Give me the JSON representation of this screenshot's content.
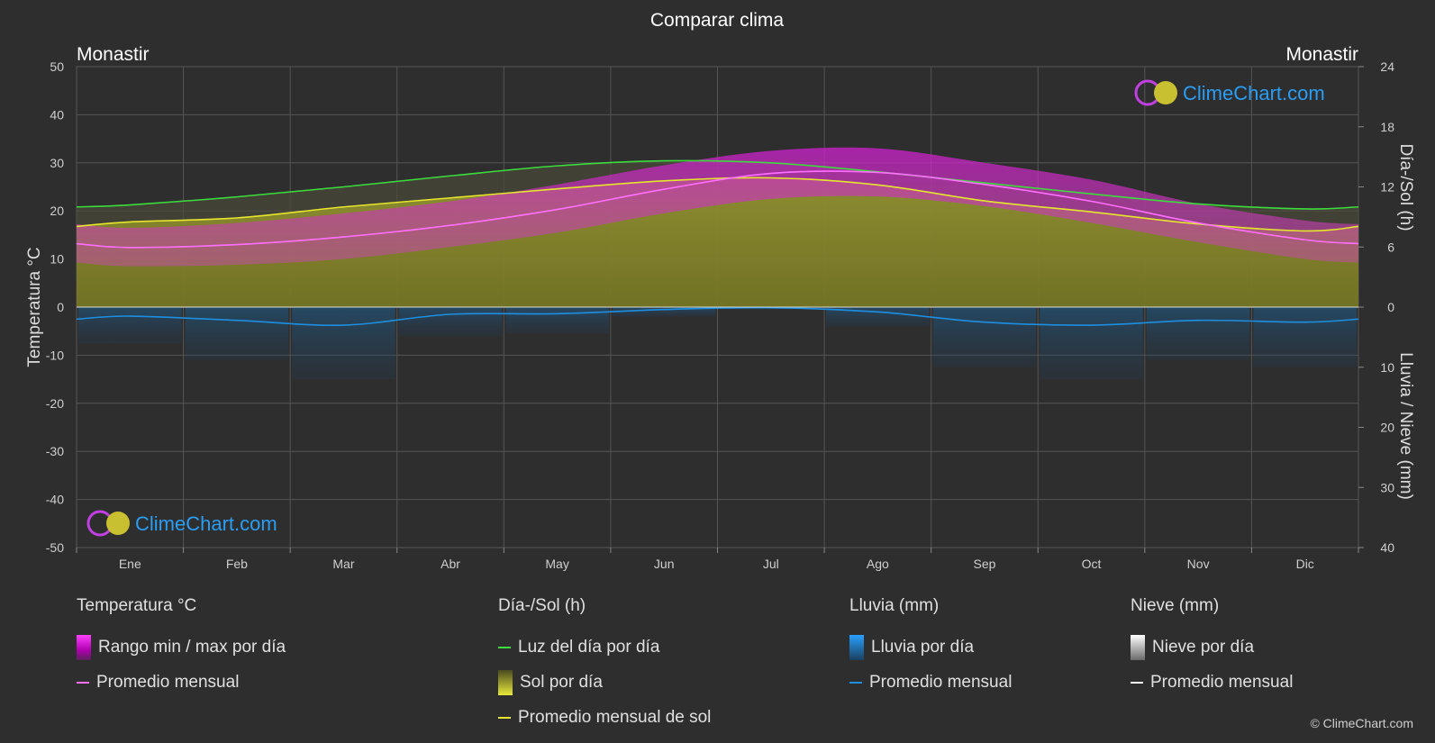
{
  "chart_data": {
    "type": "area",
    "title": "Comparar clima",
    "location_left": "Monastir",
    "location_right": "Monastir",
    "y_left_label": "Temperatura °C",
    "y_right_top_label": "Día-/Sol (h)",
    "y_right_bottom_label": "Lluvia / Nieve (mm)",
    "y_left_ticks": [
      "50",
      "40",
      "30",
      "20",
      "10",
      "0",
      "-10",
      "-20",
      "-30",
      "-40",
      "-50"
    ],
    "y_right_top_ticks": [
      "24",
      "18",
      "12",
      "6",
      "0"
    ],
    "y_right_bottom_ticks": [
      "10",
      "20",
      "30",
      "40"
    ],
    "ylim_temperature": [
      -50,
      50
    ],
    "ylim_hours": [
      0,
      24
    ],
    "ylim_precip_mm": [
      0,
      40
    ],
    "grid": true,
    "months": [
      "Ene",
      "Feb",
      "Mar",
      "Abr",
      "May",
      "Jun",
      "Jul",
      "Ago",
      "Sep",
      "Oct",
      "Nov",
      "Dic"
    ],
    "series": [
      {
        "name": "Luz del día por día",
        "unit": "h",
        "color": "#3ddc3d",
        "values": [
          10.2,
          11.0,
          12.0,
          13.1,
          14.1,
          14.6,
          14.4,
          13.5,
          12.4,
          11.3,
          10.3,
          9.8
        ]
      },
      {
        "name": "Promedio mensual de sol",
        "unit": "h",
        "color": "#e6e62e",
        "values": [
          8.5,
          8.9,
          10.0,
          10.9,
          11.8,
          12.6,
          12.9,
          12.2,
          10.6,
          9.5,
          8.3,
          7.6
        ]
      },
      {
        "name": "Temperatura promedio mensual",
        "unit": "°C",
        "color": "#ff70ff",
        "values": [
          12.4,
          13.0,
          14.6,
          17.0,
          20.3,
          24.5,
          27.8,
          28.0,
          25.5,
          22.0,
          17.5,
          14.0
        ]
      },
      {
        "name": "Temperatura máx diaria (aprox.)",
        "unit": "°C",
        "values": [
          16.5,
          17.5,
          19.5,
          22.0,
          25.5,
          29.5,
          32.5,
          33.0,
          30.0,
          26.5,
          21.5,
          18.0
        ]
      },
      {
        "name": "Temperatura mín diaria (aprox.)",
        "unit": "°C",
        "values": [
          8.5,
          8.8,
          10.0,
          12.5,
          15.5,
          19.5,
          22.5,
          23.0,
          21.0,
          17.5,
          13.5,
          10.0
        ]
      },
      {
        "name": "Lluvia promedio mensual",
        "unit": "mm",
        "color": "#1e8fe0",
        "values": [
          1.5,
          2.2,
          3.0,
          1.2,
          1.1,
          0.4,
          0.1,
          0.8,
          2.5,
          3.0,
          2.2,
          2.5
        ]
      },
      {
        "name": "Nieve promedio mensual",
        "unit": "mm",
        "color": "#ffffff",
        "values": [
          0,
          0,
          0,
          0,
          0,
          0,
          0,
          0,
          0,
          0,
          0,
          0
        ]
      }
    ]
  },
  "watermark": {
    "text": "ClimeChart.com"
  },
  "legend": {
    "temperature": {
      "header": "Temperatura °C",
      "range": "Rango min / max por día",
      "avg": "Promedio mensual"
    },
    "sun": {
      "header": "Día-/Sol (h)",
      "daylight": "Luz del día por día",
      "sun_per_day": "Sol por día",
      "sun_avg": "Promedio mensual de sol"
    },
    "rain": {
      "header": "Lluvia (mm)",
      "per_day": "Lluvia por día",
      "avg": "Promedio mensual"
    },
    "snow": {
      "header": "Nieve (mm)",
      "per_day": "Nieve por día",
      "avg": "Promedio mensual"
    }
  },
  "copyright": "© ClimeChart.com"
}
